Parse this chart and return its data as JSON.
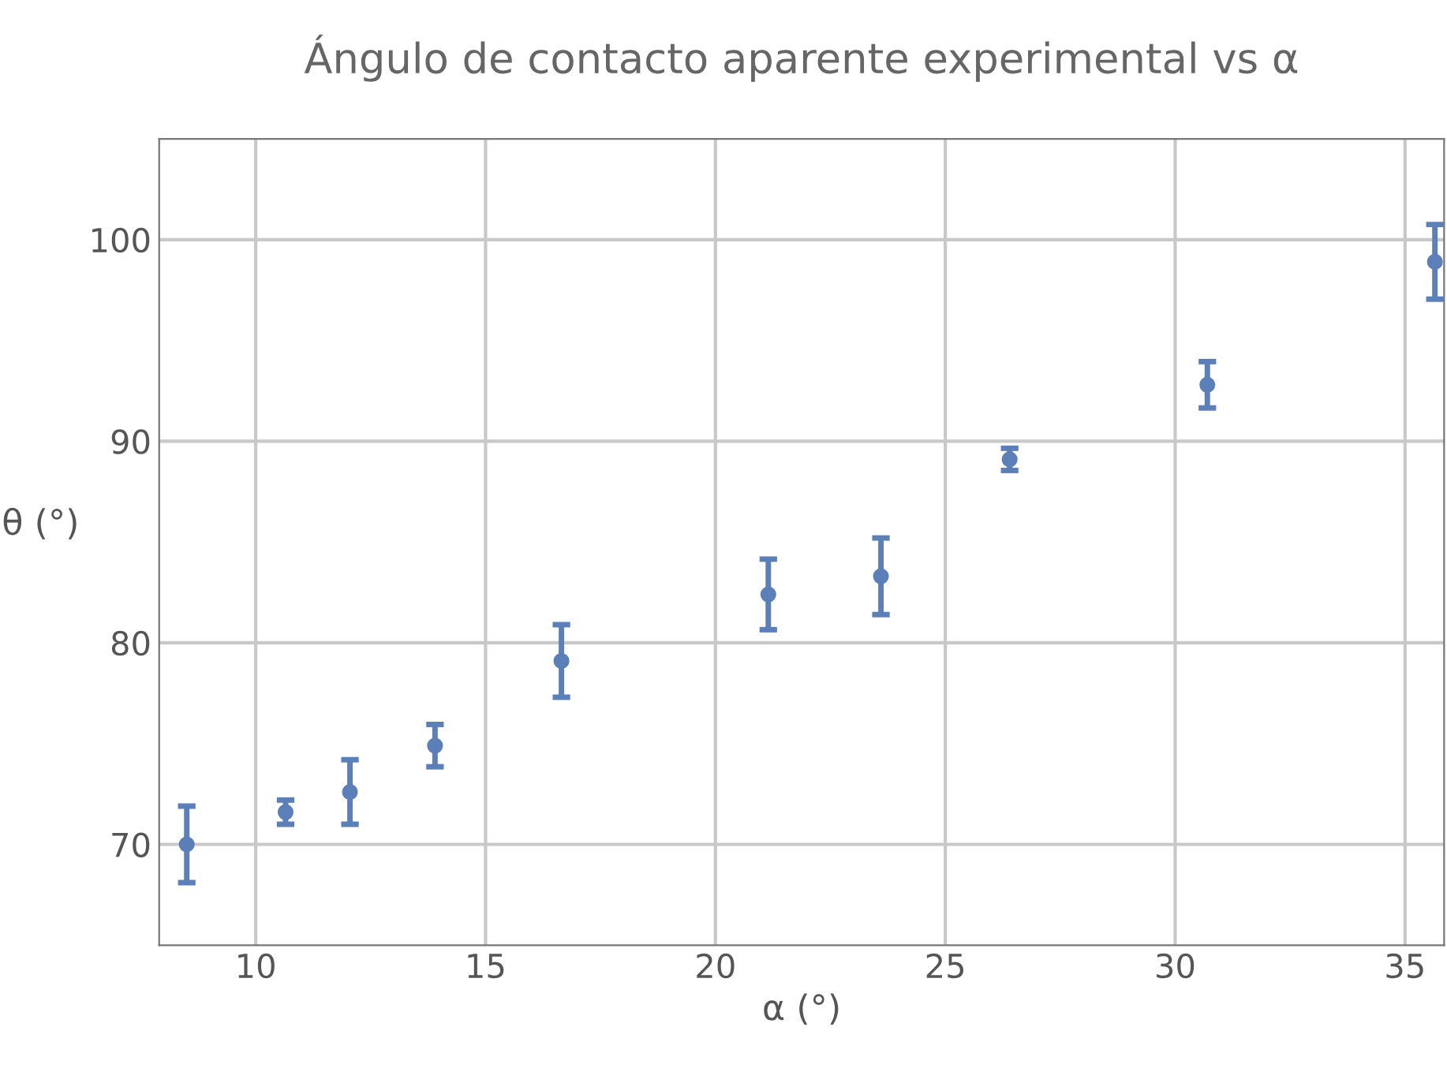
{
  "chart_data": {
    "type": "scatter",
    "title": "Ángulo de contacto aparente experimental vs α",
    "xlabel": "α (°)",
    "ylabel": "θ (°)",
    "x": [
      8.5,
      10.65,
      12.05,
      13.9,
      16.65,
      21.15,
      23.6,
      26.4,
      30.7,
      35.65
    ],
    "series": [
      {
        "color": "#5b7fb8",
        "values": [
          70.0,
          71.6,
          72.6,
          74.9,
          79.1,
          82.4,
          83.3,
          89.1,
          92.8,
          98.9
        ],
        "errors": [
          1.9,
          0.6,
          1.6,
          1.05,
          1.8,
          1.75,
          1.9,
          0.55,
          1.15,
          1.85
        ]
      }
    ],
    "xlim": [
      7.9,
      35.85
    ],
    "xticks": [
      10,
      15,
      20,
      25,
      30,
      35
    ],
    "ylim": [
      65,
      105
    ],
    "yticks": [
      70,
      80,
      90,
      100
    ],
    "grid": true,
    "marker": "circle"
  }
}
